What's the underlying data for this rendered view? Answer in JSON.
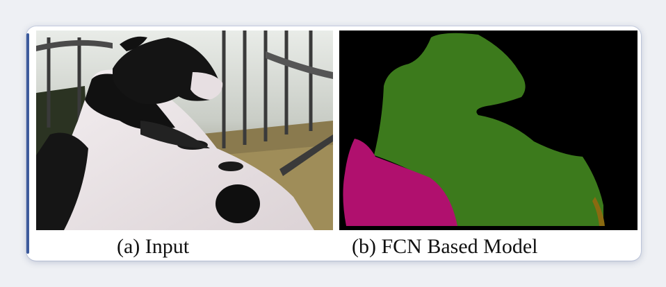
{
  "figure": {
    "panel_a": {
      "caption": "(a) Input",
      "image_description": "cow-photo"
    },
    "panel_b": {
      "caption": "(b) FCN Based Model",
      "segment_colors": {
        "background": "#000000",
        "body": "#3c7a1c",
        "rear": "#b0106e",
        "edge": "#8a6a10"
      }
    }
  }
}
